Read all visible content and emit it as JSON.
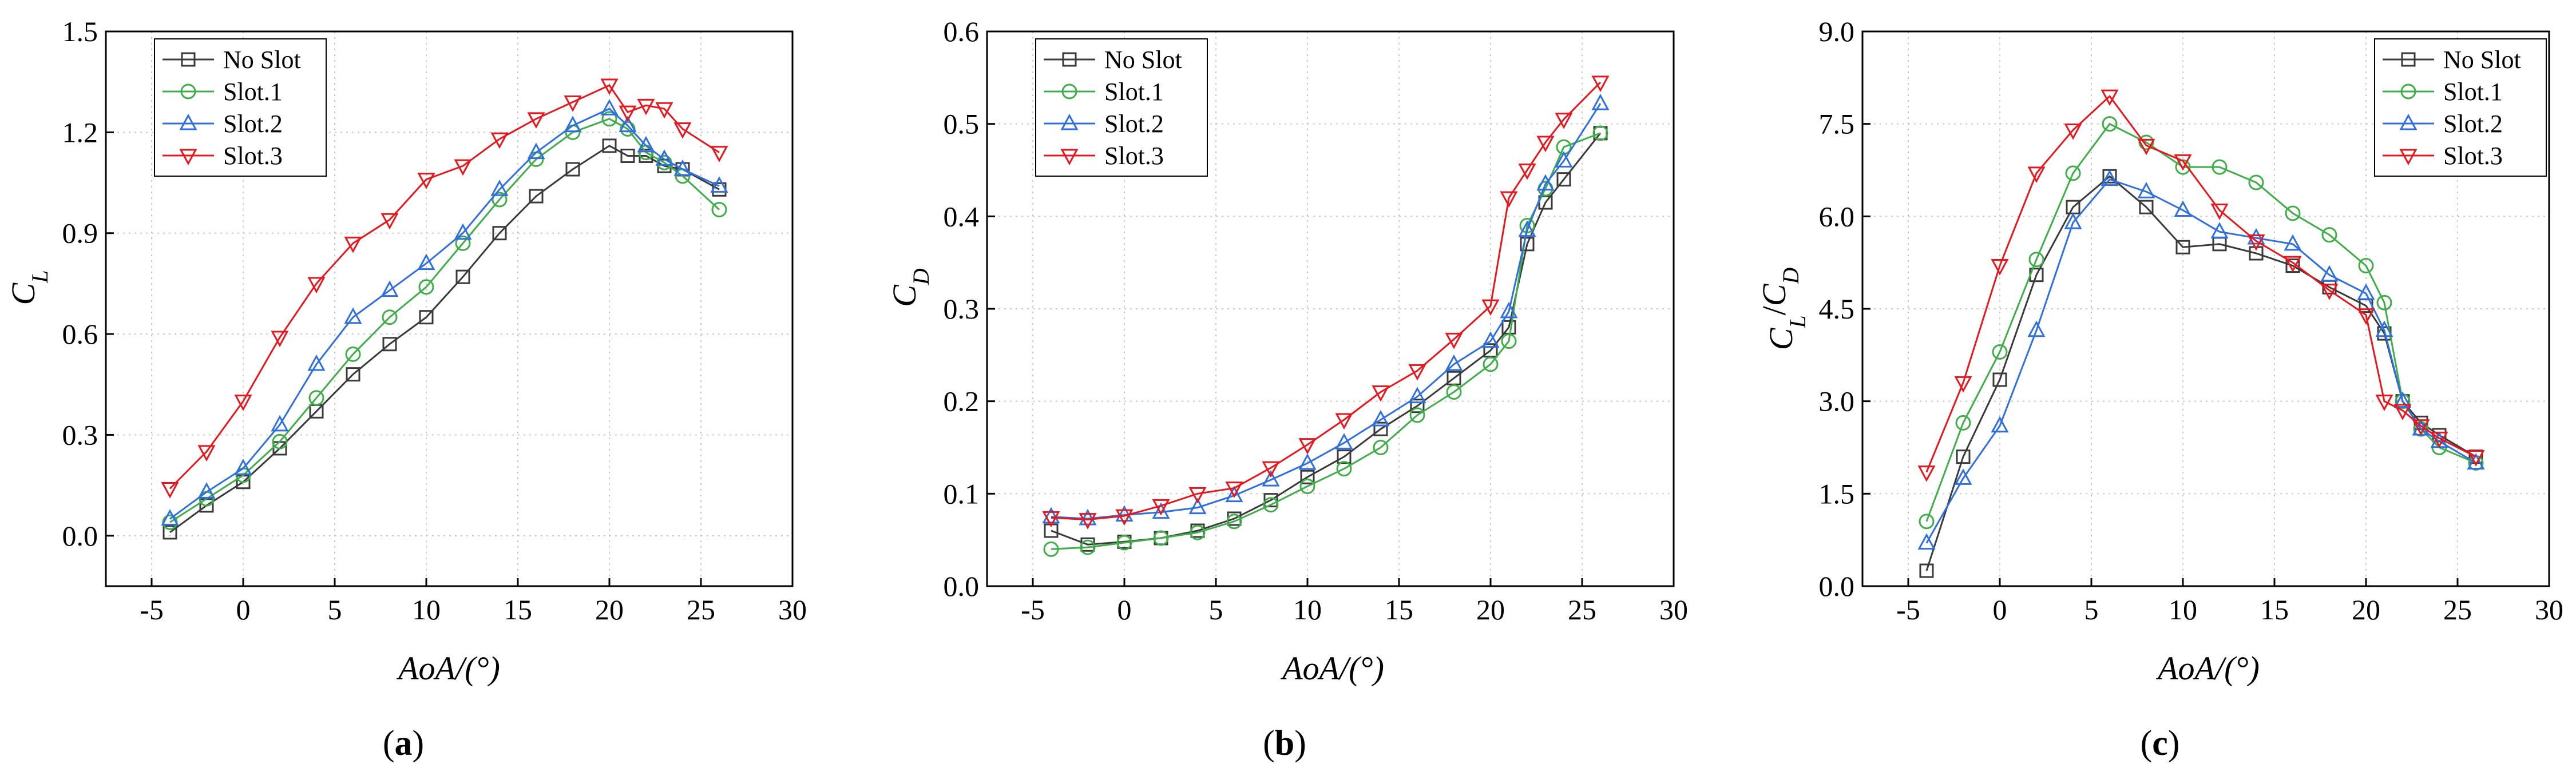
{
  "figure_title": "",
  "colors": {
    "No Slot": "#3a3a3a",
    "Slot.1": "#3fae49",
    "Slot.2": "#2f6fe0",
    "Slot.3": "#e8161d"
  },
  "markers": {
    "No Slot": "square",
    "Slot.1": "circle",
    "Slot.2": "triangle-up",
    "Slot.3": "triangle-down"
  },
  "chart_data": [
    {
      "type": "line",
      "panel_label": "a",
      "title": "",
      "xlabel": "AoA/(°)",
      "ylabel": "C_L",
      "ylabel_main": "C",
      "ylabel_sub": "L",
      "xlim": [
        -7.5,
        30
      ],
      "ylim": [
        -0.15,
        1.5
      ],
      "xticks": [
        -5,
        0,
        5,
        10,
        15,
        20,
        25,
        30
      ],
      "xtick_labels": [
        "-5",
        "0",
        "5",
        "10",
        "15",
        "20",
        "25",
        "30"
      ],
      "yticks": [
        0.0,
        0.3,
        0.6,
        0.9,
        1.2,
        1.5
      ],
      "ytick_labels": [
        "0.0",
        "0.3",
        "0.6",
        "0.9",
        "1.2",
        "1.5"
      ],
      "legend_position": "top-left",
      "series": [
        {
          "name": "No Slot",
          "x": [
            -4,
            -2,
            0,
            2,
            4,
            6,
            8,
            10,
            12,
            14,
            16,
            18,
            20,
            21,
            22,
            23,
            24,
            26
          ],
          "y": [
            0.01,
            0.09,
            0.16,
            0.26,
            0.37,
            0.48,
            0.57,
            0.65,
            0.77,
            0.9,
            1.01,
            1.09,
            1.16,
            1.13,
            1.13,
            1.1,
            1.09,
            1.03
          ]
        },
        {
          "name": "Slot.1",
          "x": [
            -4,
            -2,
            0,
            2,
            4,
            6,
            8,
            10,
            12,
            14,
            16,
            18,
            20,
            21,
            22,
            23,
            24,
            26
          ],
          "y": [
            0.04,
            0.11,
            0.18,
            0.28,
            0.41,
            0.54,
            0.65,
            0.74,
            0.87,
            1.0,
            1.12,
            1.2,
            1.24,
            1.21,
            1.14,
            1.11,
            1.07,
            0.97
          ]
        },
        {
          "name": "Slot.2",
          "x": [
            -4,
            -2,
            0,
            2,
            4,
            6,
            8,
            10,
            12,
            14,
            16,
            18,
            20,
            21,
            22,
            23,
            24,
            26
          ],
          "y": [
            0.05,
            0.13,
            0.2,
            0.33,
            0.51,
            0.65,
            0.73,
            0.81,
            0.9,
            1.03,
            1.14,
            1.22,
            1.27,
            1.22,
            1.16,
            1.12,
            1.09,
            1.04
          ]
        },
        {
          "name": "Slot.3",
          "x": [
            -4,
            -2,
            0,
            2,
            4,
            6,
            8,
            10,
            12,
            14,
            16,
            18,
            20,
            21,
            22,
            23,
            24,
            26
          ],
          "y": [
            0.14,
            0.25,
            0.4,
            0.59,
            0.75,
            0.87,
            0.94,
            1.06,
            1.1,
            1.18,
            1.24,
            1.29,
            1.34,
            1.26,
            1.28,
            1.27,
            1.21,
            1.14
          ]
        }
      ]
    },
    {
      "type": "line",
      "panel_label": "b",
      "title": "",
      "xlabel": "AoA/(°)",
      "ylabel": "C_D",
      "ylabel_main": "C",
      "ylabel_sub": "D",
      "xlim": [
        -7.5,
        30
      ],
      "ylim": [
        0.0,
        0.6
      ],
      "xticks": [
        -5,
        0,
        5,
        10,
        15,
        20,
        25,
        30
      ],
      "xtick_labels": [
        "-5",
        "0",
        "5",
        "10",
        "15",
        "20",
        "25",
        "30"
      ],
      "yticks": [
        0.0,
        0.1,
        0.2,
        0.3,
        0.4,
        0.5,
        0.6
      ],
      "ytick_labels": [
        "0.0",
        "0.1",
        "0.2",
        "0.3",
        "0.4",
        "0.5",
        "0.6"
      ],
      "legend_position": "top-left",
      "series": [
        {
          "name": "No Slot",
          "x": [
            -4,
            -2,
            0,
            2,
            4,
            6,
            8,
            10,
            12,
            14,
            16,
            18,
            20,
            21,
            22,
            23,
            24,
            26
          ],
          "y": [
            0.06,
            0.045,
            0.048,
            0.052,
            0.06,
            0.073,
            0.093,
            0.118,
            0.14,
            0.17,
            0.195,
            0.225,
            0.255,
            0.28,
            0.37,
            0.415,
            0.44,
            0.49
          ]
        },
        {
          "name": "Slot.1",
          "x": [
            -4,
            -2,
            0,
            2,
            4,
            6,
            8,
            10,
            12,
            14,
            16,
            18,
            20,
            21,
            22,
            23,
            24,
            26
          ],
          "y": [
            0.04,
            0.042,
            0.047,
            0.052,
            0.058,
            0.07,
            0.088,
            0.108,
            0.127,
            0.15,
            0.185,
            0.21,
            0.24,
            0.265,
            0.39,
            0.43,
            0.475,
            0.49
          ]
        },
        {
          "name": "Slot.2",
          "x": [
            -4,
            -2,
            0,
            2,
            4,
            6,
            8,
            10,
            12,
            14,
            16,
            18,
            20,
            21,
            22,
            23,
            24,
            26
          ],
          "y": [
            0.075,
            0.073,
            0.077,
            0.08,
            0.085,
            0.098,
            0.115,
            0.133,
            0.155,
            0.18,
            0.205,
            0.24,
            0.265,
            0.297,
            0.385,
            0.435,
            0.46,
            0.522
          ]
        },
        {
          "name": "Slot.3",
          "x": [
            -4,
            -2,
            0,
            2,
            4,
            6,
            8,
            10,
            12,
            14,
            16,
            18,
            20,
            21,
            22,
            23,
            24,
            26
          ],
          "y": [
            0.074,
            0.072,
            0.076,
            0.087,
            0.1,
            0.106,
            0.128,
            0.153,
            0.18,
            0.21,
            0.233,
            0.267,
            0.303,
            0.42,
            0.45,
            0.48,
            0.505,
            0.545
          ]
        }
      ]
    },
    {
      "type": "line",
      "panel_label": "c",
      "title": "",
      "xlabel": "AoA/(°)",
      "ylabel": "C_L/C_D",
      "ylabel_main": "C",
      "ylabel_sub": "L",
      "ylabel_sep": "/",
      "ylabel_main2": "C",
      "ylabel_sub2": "D",
      "xlim": [
        -7.5,
        30
      ],
      "ylim": [
        0.0,
        9.0
      ],
      "xticks": [
        -5,
        0,
        5,
        10,
        15,
        20,
        25,
        30
      ],
      "xtick_labels": [
        "-5",
        "0",
        "5",
        "10",
        "15",
        "20",
        "25",
        "30"
      ],
      "yticks": [
        0.0,
        1.5,
        3.0,
        4.5,
        6.0,
        7.5,
        9.0
      ],
      "ytick_labels": [
        "0.0",
        "1.5",
        "3.0",
        "4.5",
        "6.0",
        "7.5",
        "9.0"
      ],
      "legend_position": "top-right",
      "series": [
        {
          "name": "No Slot",
          "x": [
            -4,
            -2,
            0,
            2,
            4,
            6,
            8,
            10,
            12,
            14,
            16,
            18,
            20,
            21,
            22,
            23,
            24,
            26
          ],
          "y": [
            0.25,
            2.1,
            3.35,
            5.05,
            6.15,
            6.65,
            6.15,
            5.5,
            5.55,
            5.4,
            5.2,
            4.85,
            4.55,
            4.1,
            3.0,
            2.65,
            2.45,
            2.1
          ]
        },
        {
          "name": "Slot.1",
          "x": [
            -4,
            -2,
            0,
            2,
            4,
            6,
            8,
            10,
            12,
            14,
            16,
            18,
            20,
            21,
            22,
            23,
            24,
            26
          ],
          "y": [
            1.05,
            2.65,
            3.8,
            5.3,
            6.7,
            7.5,
            7.2,
            6.8,
            6.8,
            6.55,
            6.05,
            5.7,
            5.2,
            4.6,
            3.0,
            2.55,
            2.25,
            2.0
          ]
        },
        {
          "name": "Slot.2",
          "x": [
            -4,
            -2,
            0,
            2,
            4,
            6,
            8,
            10,
            12,
            14,
            16,
            18,
            20,
            21,
            22,
            23,
            24,
            26
          ],
          "y": [
            0.7,
            1.75,
            2.6,
            4.15,
            5.9,
            6.6,
            6.4,
            6.1,
            5.75,
            5.65,
            5.55,
            5.05,
            4.75,
            4.15,
            3.0,
            2.55,
            2.35,
            2.0
          ]
        },
        {
          "name": "Slot.3",
          "x": [
            -4,
            -2,
            0,
            2,
            4,
            6,
            8,
            10,
            12,
            14,
            16,
            18,
            20,
            21,
            22,
            23,
            24,
            26
          ],
          "y": [
            1.85,
            3.3,
            5.2,
            6.7,
            7.4,
            7.95,
            7.15,
            6.9,
            6.1,
            5.6,
            5.25,
            4.8,
            4.4,
            3.0,
            2.85,
            2.6,
            2.4,
            2.1
          ]
        }
      ]
    }
  ]
}
